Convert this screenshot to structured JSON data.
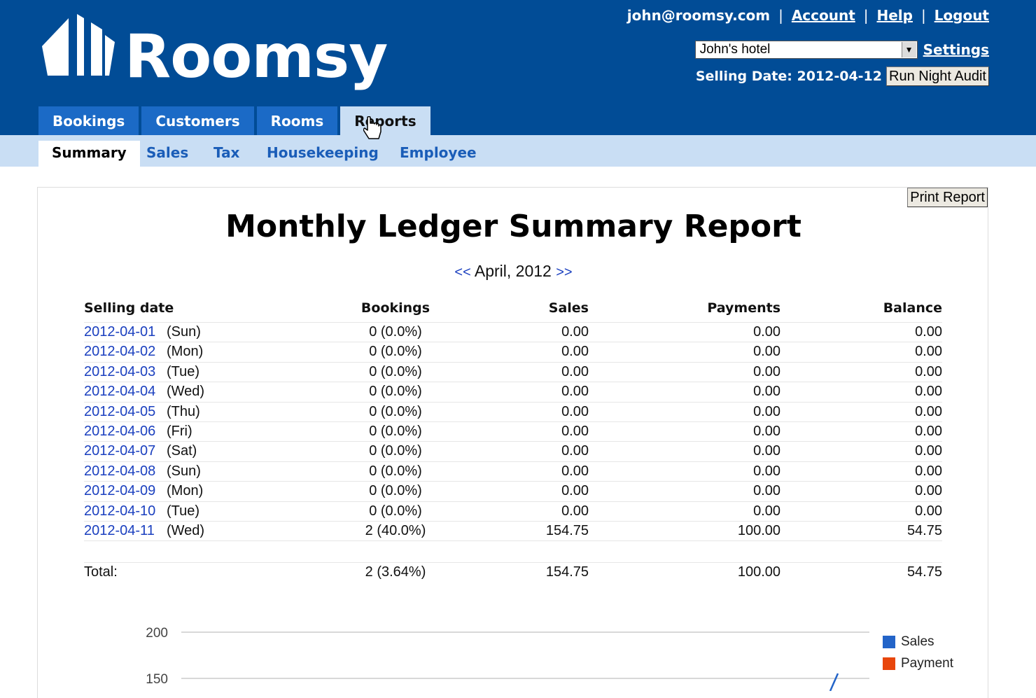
{
  "app": {
    "name": "Roomsy",
    "user_email": "john@roomsy.com",
    "links": {
      "account": "Account",
      "help": "Help",
      "logout": "Logout"
    },
    "separator": "|",
    "hotel_selected": "John's hotel",
    "settings_label": "Settings",
    "selling_date_label": "Selling Date: 2012-04-12",
    "run_audit_label": "Run Night Audit"
  },
  "nav": {
    "tabs": [
      {
        "label": "Bookings"
      },
      {
        "label": "Customers"
      },
      {
        "label": "Rooms"
      },
      {
        "label": "Reports",
        "active": true
      }
    ],
    "subtabs": [
      {
        "label": "Summary",
        "active": true
      },
      {
        "label": "Sales"
      },
      {
        "label": "Tax"
      },
      {
        "label": "Housekeeping"
      },
      {
        "label": "Employee"
      }
    ]
  },
  "report": {
    "print_label": "Print Report",
    "title": "Monthly Ledger Summary Report",
    "prev": "<<",
    "month": "April, 2012",
    "next": ">>",
    "columns": {
      "date": "Selling date",
      "bookings": "Bookings",
      "sales": "Sales",
      "payments": "Payments",
      "balance": "Balance"
    },
    "rows": [
      {
        "date": "2012-04-01",
        "day": "(Sun)",
        "bookings": "0 (0.0%)",
        "sales": "0.00",
        "payments": "0.00",
        "balance": "0.00"
      },
      {
        "date": "2012-04-02",
        "day": "(Mon)",
        "bookings": "0 (0.0%)",
        "sales": "0.00",
        "payments": "0.00",
        "balance": "0.00"
      },
      {
        "date": "2012-04-03",
        "day": "(Tue)",
        "bookings": "0 (0.0%)",
        "sales": "0.00",
        "payments": "0.00",
        "balance": "0.00"
      },
      {
        "date": "2012-04-04",
        "day": "(Wed)",
        "bookings": "0 (0.0%)",
        "sales": "0.00",
        "payments": "0.00",
        "balance": "0.00"
      },
      {
        "date": "2012-04-05",
        "day": "(Thu)",
        "bookings": "0 (0.0%)",
        "sales": "0.00",
        "payments": "0.00",
        "balance": "0.00"
      },
      {
        "date": "2012-04-06",
        "day": "(Fri)",
        "bookings": "0 (0.0%)",
        "sales": "0.00",
        "payments": "0.00",
        "balance": "0.00"
      },
      {
        "date": "2012-04-07",
        "day": "(Sat)",
        "bookings": "0 (0.0%)",
        "sales": "0.00",
        "payments": "0.00",
        "balance": "0.00"
      },
      {
        "date": "2012-04-08",
        "day": "(Sun)",
        "bookings": "0 (0.0%)",
        "sales": "0.00",
        "payments": "0.00",
        "balance": "0.00"
      },
      {
        "date": "2012-04-09",
        "day": "(Mon)",
        "bookings": "0 (0.0%)",
        "sales": "0.00",
        "payments": "0.00",
        "balance": "0.00"
      },
      {
        "date": "2012-04-10",
        "day": "(Tue)",
        "bookings": "0 (0.0%)",
        "sales": "0.00",
        "payments": "0.00",
        "balance": "0.00"
      },
      {
        "date": "2012-04-11",
        "day": "(Wed)",
        "bookings": "2 (40.0%)",
        "sales": "154.75",
        "payments": "100.00",
        "balance": "54.75"
      }
    ],
    "total": {
      "label": "Total:",
      "bookings": "2 (3.64%)",
      "sales": "154.75",
      "payments": "100.00",
      "balance": "54.75"
    }
  },
  "chart_data": {
    "type": "line",
    "title": "",
    "xlabel": "",
    "ylabel": "",
    "y_ticks_visible": [
      200,
      150
    ],
    "grid": true,
    "legend_position": "right",
    "series": [
      {
        "name": "Sales",
        "color": "#2364c8"
      },
      {
        "name": "Payment",
        "color": "#e8460c"
      }
    ],
    "colors": {
      "sales": "#2364c8",
      "payment": "#e8460c",
      "line": "#2364c8"
    }
  }
}
